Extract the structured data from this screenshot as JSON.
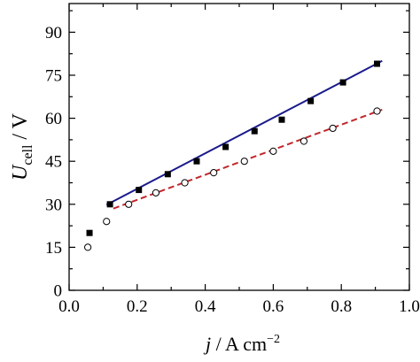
{
  "chart_data": {
    "type": "scatter",
    "xlabel": {
      "italic": "j",
      "rest": " / A cm",
      "sup": "−2"
    },
    "ylabel": {
      "italic": "U",
      "sub": "cell",
      "rest": " / V"
    },
    "xlim": [
      0.0,
      1.0
    ],
    "ylim": [
      0,
      100
    ],
    "xticks": [
      0.0,
      0.2,
      0.4,
      0.6,
      0.8,
      1.0
    ],
    "xtick_labels": [
      "0.0",
      "0.2",
      "0.4",
      "0.6",
      "0.8",
      "1.0"
    ],
    "yticks": [
      0,
      15,
      30,
      45,
      60,
      75,
      90
    ],
    "ytick_labels": [
      "0",
      "15",
      "30",
      "45",
      "60",
      "75",
      "90"
    ],
    "grid": false,
    "legend": "none",
    "series": [
      {
        "marker": "filled-square",
        "color": "#000000",
        "x": [
          0.06,
          0.12,
          0.205,
          0.29,
          0.375,
          0.46,
          0.545,
          0.625,
          0.71,
          0.805,
          0.905
        ],
        "y": [
          20,
          30,
          35,
          40.5,
          45,
          50,
          55.5,
          59.5,
          66,
          72.5,
          79
        ]
      },
      {
        "marker": "open-circle",
        "color": "#000000",
        "x": [
          0.055,
          0.11,
          0.175,
          0.255,
          0.34,
          0.425,
          0.515,
          0.6,
          0.69,
          0.775,
          0.905
        ],
        "y": [
          15,
          24,
          30,
          34,
          37.5,
          41,
          45,
          48.5,
          52,
          56.5,
          62.5
        ]
      }
    ],
    "fits": [
      {
        "style": "solid",
        "color": "#1a1a8c",
        "x": [
          0.11,
          0.92
        ],
        "y": [
          29.8,
          80
        ]
      },
      {
        "style": "dashed",
        "color": "#c0282d",
        "x": [
          0.13,
          0.92
        ],
        "y": [
          28.5,
          63
        ]
      }
    ]
  }
}
